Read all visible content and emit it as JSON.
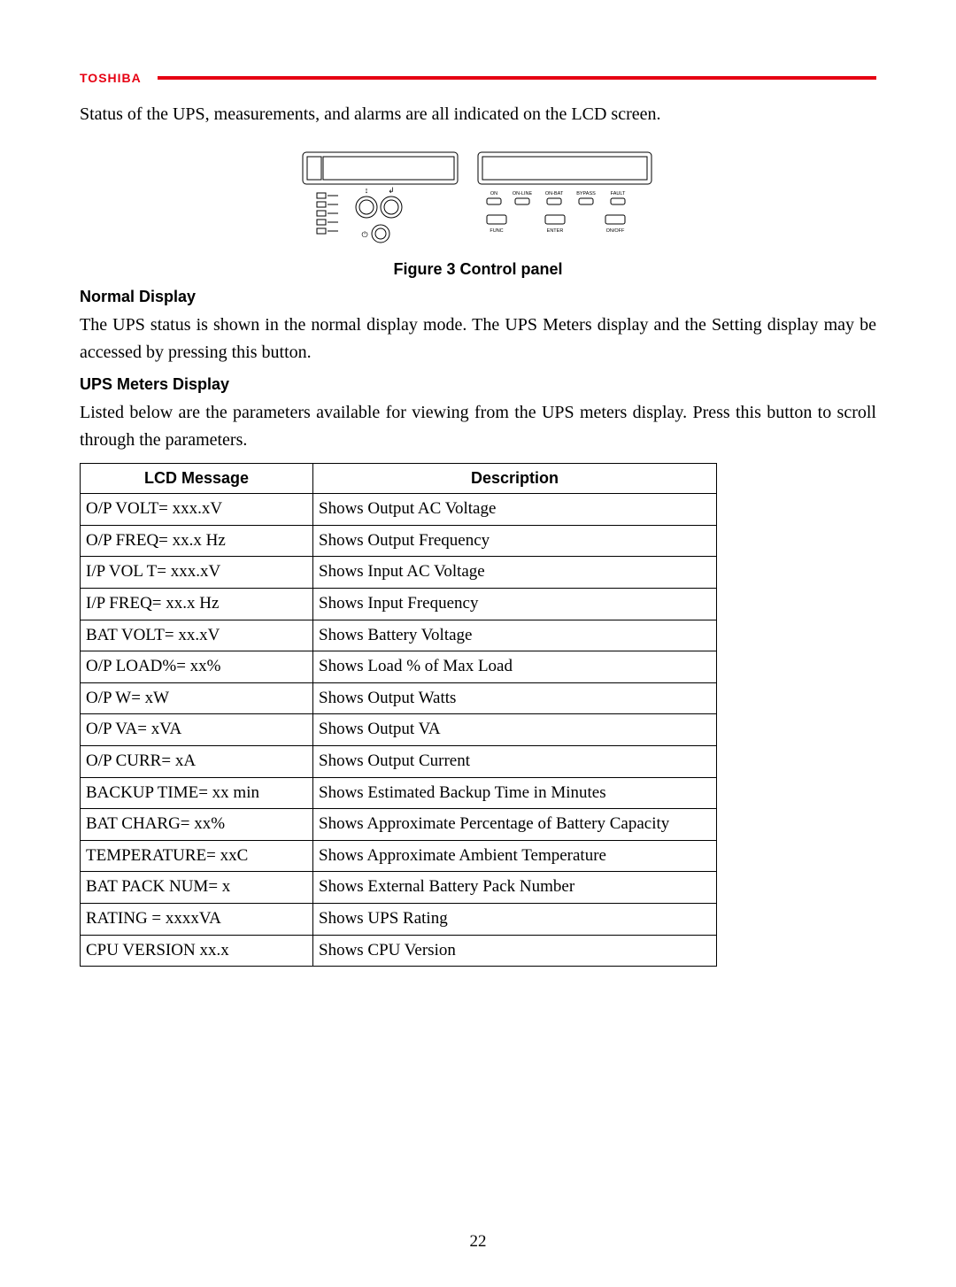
{
  "header": {
    "logo_text": "TOSHIBA",
    "logo_color": "#e60012",
    "rule_color": "#e60012"
  },
  "intro_text": "Status of the UPS, measurements, and alarms are all indicated on the LCD screen.",
  "figure": {
    "caption": "Figure 3 Control panel",
    "led_labels": [
      "ON",
      "ON-LINE",
      "ON-BAT",
      "BYPASS",
      "FAULT"
    ],
    "button_labels": [
      "FUNC",
      "ENTER",
      "ON/OFF"
    ]
  },
  "sections": {
    "normal": {
      "title": "Normal Display",
      "text": "The UPS status is shown in the normal display mode. The UPS Meters display and the Setting display may be accessed by pressing this button."
    },
    "meters": {
      "title": "UPS Meters Display",
      "text": "Listed below are the parameters available for viewing from the UPS meters display. Press this button to scroll through the parameters."
    }
  },
  "table": {
    "col1_header": "LCD Message",
    "col2_header": "Description",
    "rows": [
      {
        "msg": "O/P VOLT= xxx.xV",
        "desc": "Shows Output AC Voltage"
      },
      {
        "msg": "O/P FREQ= xx.x Hz",
        "desc": "Shows Output Frequency"
      },
      {
        "msg": "I/P VOL T= xxx.xV",
        "desc": "Shows Input AC Voltage"
      },
      {
        "msg": "I/P FREQ= xx.x Hz",
        "desc": "Shows Input Frequency"
      },
      {
        "msg": "BAT VOLT= xx.xV",
        "desc": "Shows Battery Voltage"
      },
      {
        "msg": "O/P LOAD%= xx%",
        "desc": "Shows Load % of Max Load"
      },
      {
        "msg": "O/P W= xW",
        "desc": "Shows Output Watts"
      },
      {
        "msg": "O/P VA= xVA",
        "desc": "Shows Output VA"
      },
      {
        "msg": "O/P CURR= xA",
        "desc": "Shows Output Current"
      },
      {
        "msg": "BACKUP TIME= xx min",
        "desc": "Shows Estimated Backup Time in Minutes"
      },
      {
        "msg": "BAT CHARG= xx%",
        "desc": "Shows Approximate Percentage of Battery Capacity"
      },
      {
        "msg": "TEMPERATURE= xxC",
        "desc": "Shows Approximate Ambient Temperature"
      },
      {
        "msg": "BAT PACK NUM= x",
        "desc": "Shows External Battery Pack Number"
      },
      {
        "msg": "RATING = xxxxVA",
        "desc": "Shows UPS Rating"
      },
      {
        "msg": "CPU VERSION xx.x",
        "desc": "Shows CPU Version"
      }
    ]
  },
  "page_number": "22"
}
